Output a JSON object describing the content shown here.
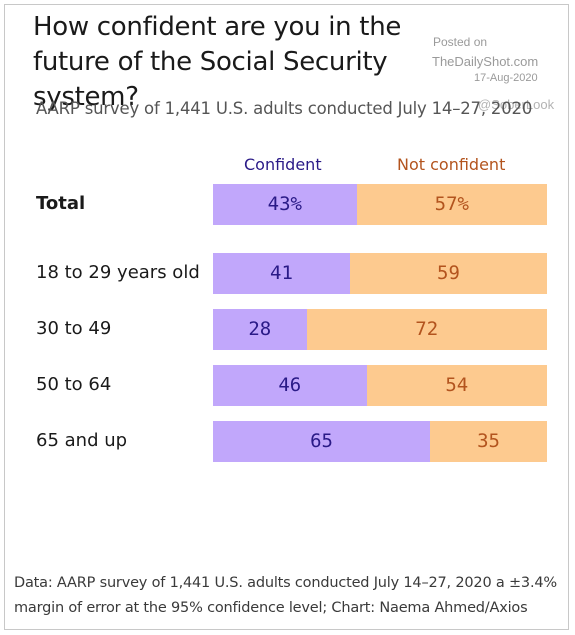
{
  "title": "How confident are you in the future of the Social Security system?",
  "subtitle": "AARP survey of 1,441 U.S. adults conducted July 14–27, 2020",
  "watermark": {
    "line1": "Posted on",
    "line2": "TheDailyShot.com",
    "line3": "17-Aug-2020",
    "line4": "@SoberLook"
  },
  "legend": {
    "confident": "Confident",
    "not_confident": "Not confident"
  },
  "colors": {
    "confident_bar": "#c1a7fb",
    "not_confident_bar": "#fdca8f",
    "confident_text": "#2a1a87",
    "not_confident_text": "#b3541e"
  },
  "source": "Data: AARP survey of 1,441 U.S. adults conducted July 14–27, 2020 a ±3.4% margin of error at the 95% confidence level; Chart: Naema Ahmed/Axios",
  "chart_data": {
    "type": "bar",
    "orientation": "horizontal",
    "stacked": true,
    "title": "How confident are you in the future of the Social Security system?",
    "subtitle": "AARP survey of 1,441 U.S. adults conducted July 14–27, 2020",
    "categories": [
      "Total",
      "18 to 29 years old",
      "30 to 49",
      "50 to 64",
      "65 and up"
    ],
    "series": [
      {
        "name": "Confident",
        "values": [
          43,
          41,
          28,
          46,
          65
        ],
        "labels": [
          "43%",
          "41",
          "28",
          "46",
          "65"
        ]
      },
      {
        "name": "Not confident",
        "values": [
          57,
          59,
          72,
          54,
          35
        ],
        "labels": [
          "57%",
          "59",
          "72",
          "54",
          "35"
        ]
      }
    ],
    "xlim": [
      0,
      100
    ],
    "grid": false,
    "legend_position": "top"
  }
}
